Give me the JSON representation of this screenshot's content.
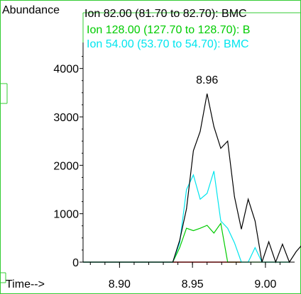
{
  "chart_data": {
    "type": "line",
    "ylabel": "Abundance",
    "xlabel": "Time-->",
    "xlim": [
      8.875,
      9.02
    ],
    "ylim": [
      0,
      4800
    ],
    "x_ticks": [
      8.9,
      8.95,
      9.0
    ],
    "x_tick_labels": [
      "8.90",
      "8.95",
      "9.00"
    ],
    "y_ticks": [
      0,
      1000,
      2000,
      3000,
      4000
    ],
    "y_tick_labels": [
      "0",
      "1000",
      "2000",
      "3000",
      "4000"
    ],
    "grid": false,
    "legend_position": "top",
    "series": [
      {
        "name": "Ion  82.00 (81.70 to 82.70): BMC",
        "color": "#000000",
        "x": [
          8.875,
          8.9,
          8.925,
          8.9365,
          8.9412,
          8.9459,
          8.9506,
          8.9553,
          8.96,
          8.9647,
          8.9694,
          8.9741,
          8.9788,
          8.9835,
          8.9882,
          8.9929,
          8.9976,
          9.0023,
          9.007,
          9.0117,
          9.0164,
          9.0211,
          9.0258,
          9.0305,
          9.0352,
          9.0399
        ],
        "y": [
          0,
          0,
          0,
          0,
          450,
          1100,
          2300,
          2700,
          3480,
          2800,
          2350,
          2500,
          1350,
          680,
          1300,
          850,
          0,
          420,
          0,
          370,
          0,
          220,
          380,
          0,
          380,
          0
        ]
      },
      {
        "name": "Ion 128.00 (127.70 to 128.70): B",
        "color": "#00cc00",
        "x": [
          8.875,
          8.9,
          8.925,
          8.9365,
          8.9412,
          8.9459,
          8.9506,
          8.9553,
          8.96,
          8.9647,
          8.9694,
          8.9741,
          8.9788,
          8.9835,
          8.9882,
          8.9929,
          8.9976,
          9.0023,
          9.007,
          9.0117,
          9.0164
        ],
        "y": [
          0,
          0,
          0,
          0,
          300,
          700,
          650,
          700,
          760,
          600,
          800,
          0,
          0,
          0,
          0,
          0,
          0,
          0,
          0,
          0,
          0
        ]
      },
      {
        "name": "Ion  54.00 (53.70 to 54.70): BMC",
        "color": "#00e5ee",
        "x": [
          8.875,
          8.9,
          8.925,
          8.9365,
          8.9412,
          8.9459,
          8.9506,
          8.9553,
          8.96,
          8.9647,
          8.9694,
          8.9741,
          8.9788,
          8.9835,
          8.9882,
          8.9929,
          8.9976,
          9.0023,
          9.007,
          9.0117,
          9.0164
        ],
        "y": [
          0,
          0,
          0,
          0,
          400,
          1500,
          1800,
          1300,
          1420,
          1880,
          850,
          700,
          400,
          0,
          0,
          300,
          0,
          0,
          0,
          0,
          0
        ]
      },
      {
        "name": "",
        "color": "#ff0000",
        "x": [
          8.9365,
          8.9835
        ],
        "y": [
          0,
          0
        ]
      }
    ],
    "annotations": [
      {
        "text": "8.96",
        "x": 8.96,
        "y": 3480
      }
    ]
  }
}
